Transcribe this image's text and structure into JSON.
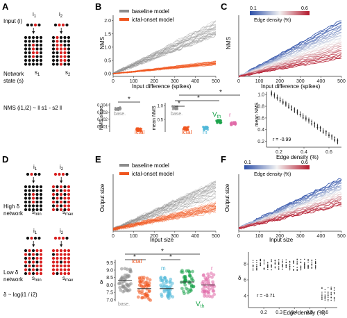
{
  "panels": {
    "A": {
      "letter": "A",
      "input_label": "Input (i)",
      "i1": "i",
      "i1_sub": "1",
      "i2": "i",
      "i2_sub": "2",
      "s1": "s",
      "s1_sub": "1",
      "s2": "s",
      "s2_sub": "2",
      "network_state_line1": "Network",
      "network_state_line2": "state (s)",
      "nms_formula": "NMS (i1,i2) ~ ‖ s1 - s2 ‖"
    },
    "B": {
      "letter": "B",
      "legend": [
        "baseline model",
        "ictal-onset model"
      ],
      "ylabel": "NMS",
      "xlabel": "Input difference (spikes)",
      "xticks": [
        "0",
        "100",
        "200",
        "300",
        "400",
        "500"
      ],
      "yticks": [
        "0.0",
        "0.5",
        "1.0",
        "1.5",
        "2.0"
      ]
    },
    "C": {
      "letter": "C",
      "colorbar_min": "0.1",
      "colorbar_max": "0.6",
      "colorbar_label": "Edge density (%)",
      "ylabel": "NMS",
      "xlabel": "Input difference (spikes)",
      "xticks": [
        "0",
        "100",
        "200",
        "300",
        "400",
        "500"
      ]
    },
    "B2": {
      "ylabel": "NMS slope",
      "yticks": [
        "0.004",
        "0.003",
        "0.002",
        "0.001"
      ],
      "base_label": "base.",
      "ictal_label": "ictal",
      "star": "*"
    },
    "B3": {
      "ylabel": "mean NMS",
      "yticks": [
        "1.0",
        "0.5"
      ],
      "base_label": "base.",
      "ictal_label": "ictal",
      "m_label": "m",
      "vth_label": "V",
      "vth_sub": "th",
      "r_label": "r",
      "star": "*"
    },
    "C2": {
      "ylabel": "mean NMS",
      "xlabel": "Edge density (%)",
      "xticks": [
        "0.2",
        "0.4",
        "0.6"
      ],
      "yticks": [
        "1.0",
        "0.8",
        "0.6",
        "0.4",
        "0.2"
      ],
      "r_text": "r = -0.99"
    },
    "D": {
      "letter": "D",
      "high_line1": "High δ",
      "high_line2": "network",
      "low_line1": "Low δ",
      "low_line2": "network",
      "smin": "s",
      "smin_sub": "min",
      "smax": "s",
      "smax_sub": "max",
      "i1": "i",
      "i1_sub": "1",
      "i2": "i",
      "i2_sub": "2",
      "delta_formula": "δ ~ log(i1 / i2)"
    },
    "E": {
      "letter": "E",
      "legend": [
        "baseline model",
        "ictal-onset model"
      ],
      "ylabel": "Output size",
      "xlabel": "Input size",
      "xticks": [
        "0",
        "100",
        "200",
        "300",
        "400",
        "500"
      ]
    },
    "E2": {
      "ylabel": "δ",
      "yticks": [
        "9.5",
        "9.0",
        "8.5",
        "8.0",
        "7.5",
        "7.0"
      ],
      "base_label": "base.",
      "ictal_label": "ictal",
      "m_label": "m",
      "vth_label": "V",
      "vth_sub": "th",
      "r_label": "r",
      "star": "*"
    },
    "F": {
      "letter": "F",
      "colorbar_min": "0.1",
      "colorbar_max": "0.6",
      "colorbar_label": "Edge density (%)",
      "ylabel": "Output size",
      "xlabel": "Input size",
      "xticks": [
        "0",
        "100",
        "200",
        "300",
        "400",
        "500"
      ]
    },
    "F2": {
      "ylabel": "δ",
      "xlabel": "Edge density (%)",
      "xticks": [
        "0.2",
        "0.3",
        "0.4",
        "0.5",
        "0.6"
      ],
      "yticks": [
        "8",
        "6",
        "4"
      ],
      "r_text": "r = -0.71"
    }
  },
  "colors": {
    "baseline": "#8c8c8c",
    "ictal": "#f0551e",
    "m": "#4fb8d8",
    "vth": "#1aa34a",
    "r": "#e06aa8",
    "low_density": "#2b4ea8",
    "high_density": "#b3172b",
    "node_red": "#d81e1e"
  },
  "chart_data": [
    {
      "type": "line",
      "panel": "B",
      "x": [
        0,
        100,
        200,
        300,
        400,
        500
      ],
      "series": [
        {
          "name": "baseline model",
          "values": [
            0.0,
            0.35,
            0.7,
            1.05,
            1.4,
            1.75
          ]
        },
        {
          "name": "ictal-onset model",
          "values": [
            0.0,
            0.08,
            0.16,
            0.24,
            0.32,
            0.4
          ]
        }
      ],
      "xlabel": "Input difference (spikes)",
      "ylabel": "NMS",
      "xlim": [
        0,
        500
      ],
      "ylim": [
        -0.1,
        2.2
      ]
    },
    {
      "type": "line",
      "panel": "C",
      "x": [
        0,
        100,
        200,
        300,
        400,
        500
      ],
      "edge_density_range": [
        0.1,
        0.6
      ],
      "xlabel": "Input difference (spikes)",
      "ylabel": "NMS",
      "xlim": [
        0,
        500
      ]
    },
    {
      "type": "scatter",
      "panel": "B2",
      "categories": [
        "base.",
        "ictal"
      ],
      "values": [
        0.0035,
        0.0005
      ],
      "ylabel": "NMS slope",
      "ylim": [
        0.0002,
        0.0043
      ]
    },
    {
      "type": "scatter",
      "panel": "B3",
      "categories": [
        "base.",
        "ictal",
        "m",
        "Vth",
        "r"
      ],
      "values": [
        0.92,
        0.18,
        0.18,
        0.42,
        0.35
      ],
      "ylabel": "mean NMS",
      "ylim": [
        0.05,
        1.1
      ]
    },
    {
      "type": "scatter",
      "panel": "C2",
      "xlabel": "Edge density (%)",
      "ylabel": "mean NMS",
      "xlim": [
        0.1,
        0.7
      ],
      "ylim": [
        0.1,
        1.05
      ],
      "r": -0.99
    },
    {
      "type": "line",
      "panel": "E",
      "x": [
        0,
        100,
        200,
        300,
        400,
        500
      ],
      "series": [
        {
          "name": "baseline model",
          "values": [
            0,
            14,
            28,
            42,
            56,
            68
          ]
        },
        {
          "name": "ictal-onset model",
          "values": [
            0,
            8,
            16,
            24,
            31,
            38
          ]
        }
      ],
      "xlabel": "Input size",
      "ylabel": "Output size",
      "xlim": [
        0,
        500
      ],
      "ylim": [
        -3,
        92
      ]
    },
    {
      "type": "scatter",
      "panel": "E2",
      "categories": [
        "base.",
        "ictal",
        "m",
        "Vth",
        "r"
      ],
      "values": [
        8.3,
        7.75,
        7.75,
        8.2,
        8.0
      ],
      "ylabel": "δ",
      "ylim": [
        6.9,
        9.7
      ]
    },
    {
      "type": "line",
      "panel": "F",
      "x": [
        0,
        100,
        200,
        300,
        400,
        500
      ],
      "edge_density_range": [
        0.1,
        0.6
      ],
      "xlabel": "Input size",
      "ylabel": "Output size",
      "xlim": [
        0,
        500
      ]
    },
    {
      "type": "scatter",
      "panel": "F2",
      "xlabel": "Edge density (%)",
      "ylabel": "δ",
      "xlim": [
        0.1,
        0.68
      ],
      "ylim": [
        2.5,
        9.5
      ],
      "r": -0.71
    }
  ]
}
